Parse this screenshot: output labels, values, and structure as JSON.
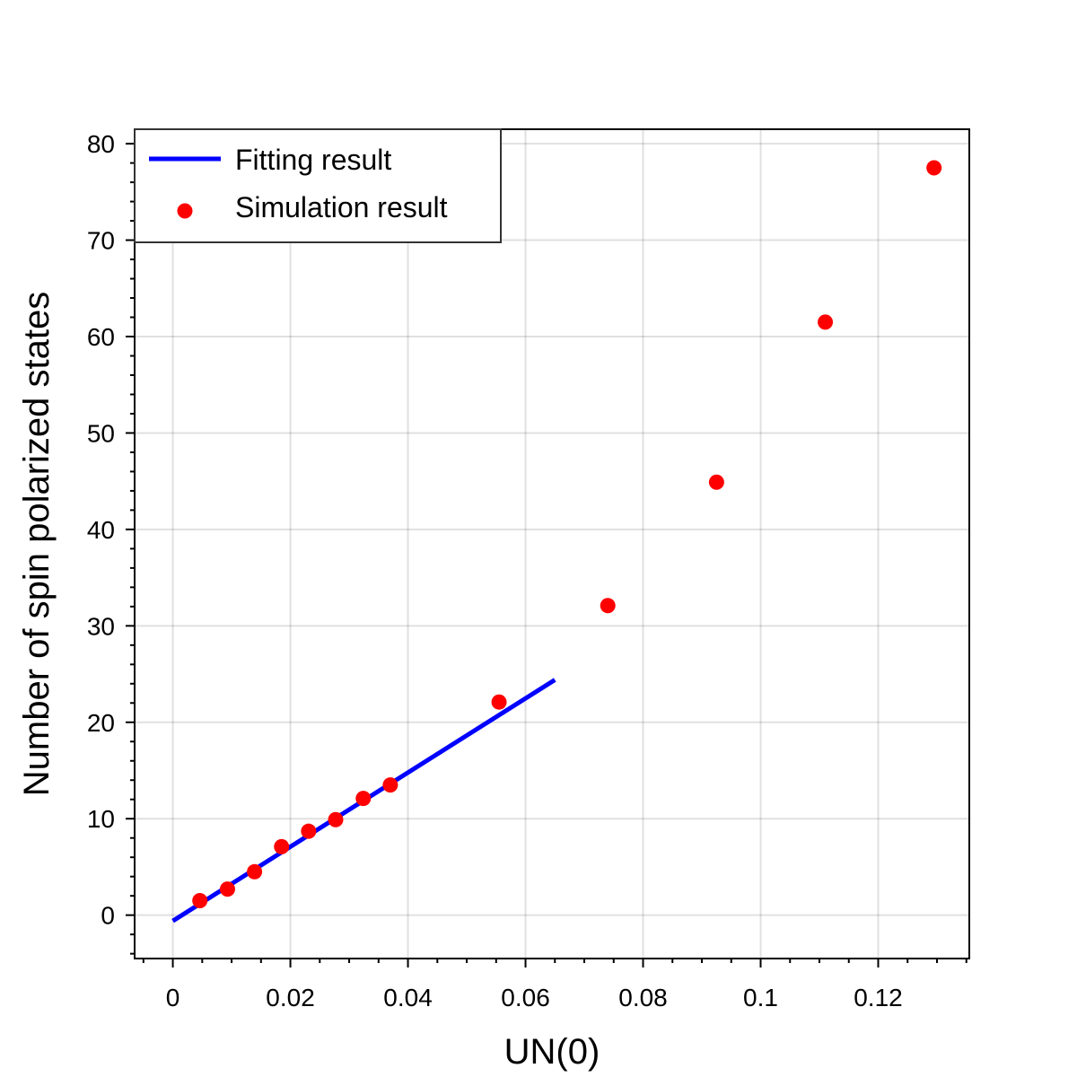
{
  "chart_data": {
    "type": "scatter",
    "xlabel": "UN(0)",
    "ylabel": "Number of spin polarized states",
    "xlim": [
      -0.0065,
      0.1355
    ],
    "ylim": [
      -4.5,
      81.5
    ],
    "x_ticks": [
      0,
      0.02,
      0.04,
      0.06,
      0.08,
      0.1,
      0.12
    ],
    "x_tick_labels": [
      "0",
      "0.02",
      "0.04",
      "0.06",
      "0.08",
      "0.1",
      "0.12"
    ],
    "y_ticks": [
      0,
      10,
      20,
      30,
      40,
      50,
      60,
      70,
      80
    ],
    "y_tick_labels": [
      "0",
      "10",
      "20",
      "30",
      "40",
      "50",
      "60",
      "70",
      "80"
    ],
    "grid": true,
    "legend_position": "top-left",
    "series": [
      {
        "name": "Fitting result",
        "kind": "line",
        "color": "#0000ff",
        "x": [
          0,
          0.065
        ],
        "y": [
          -0.6,
          24.4
        ]
      },
      {
        "name": "Simulation result",
        "kind": "scatter",
        "color": "#ff0000",
        "x": [
          0.0046,
          0.0093,
          0.0139,
          0.0185,
          0.0231,
          0.0277,
          0.0324,
          0.037,
          0.0555,
          0.074,
          0.0925,
          0.111,
          0.1295
        ],
        "y": [
          1.5,
          2.7,
          4.5,
          7.1,
          8.7,
          9.9,
          12.1,
          13.5,
          22.1,
          32.1,
          44.9,
          61.5,
          77.5
        ]
      }
    ]
  }
}
